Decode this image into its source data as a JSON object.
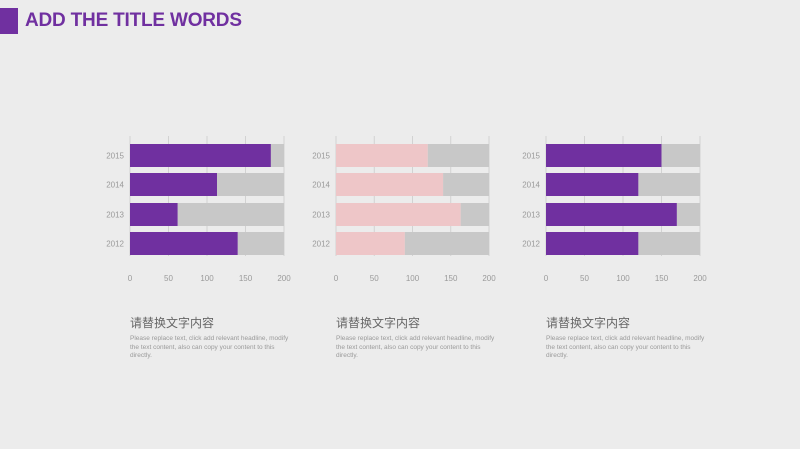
{
  "header": {
    "title": "ADD THE TITLE WORDS",
    "accent_color": "#7030a0"
  },
  "chart_data": [
    {
      "type": "bar",
      "orientation": "horizontal",
      "stacked": true,
      "categories": [
        "2015",
        "2014",
        "2013",
        "2012"
      ],
      "xlim": [
        0,
        200
      ],
      "xticks": [
        "0",
        "50",
        "100",
        "150",
        "200"
      ],
      "grid": true,
      "series": [
        {
          "color": "#7030a0",
          "values": [
            183,
            113,
            62,
            140
          ]
        },
        {
          "color": "#c8c8c8",
          "values": [
            17,
            87,
            138,
            60
          ]
        }
      ]
    },
    {
      "type": "bar",
      "orientation": "horizontal",
      "stacked": true,
      "categories": [
        "2015",
        "2014",
        "2013",
        "2012"
      ],
      "xlim": [
        0,
        200
      ],
      "xticks": [
        "0",
        "50",
        "100",
        "150",
        "200"
      ],
      "grid": true,
      "series": [
        {
          "color": "#eec6c8",
          "values": [
            120,
            140,
            163,
            90
          ]
        },
        {
          "color": "#c8c8c8",
          "values": [
            80,
            60,
            37,
            110
          ]
        }
      ]
    },
    {
      "type": "bar",
      "orientation": "horizontal",
      "stacked": true,
      "categories": [
        "2015",
        "2014",
        "2013",
        "2012"
      ],
      "xlim": [
        0,
        200
      ],
      "xticks": [
        "0",
        "50",
        "100",
        "150",
        "200"
      ],
      "grid": true,
      "series": [
        {
          "color": "#7030a0",
          "values": [
            150,
            120,
            170,
            120
          ]
        },
        {
          "color": "#c8c8c8",
          "values": [
            50,
            80,
            30,
            80
          ]
        }
      ]
    }
  ],
  "captions": [
    {
      "title": "请替换文字内容",
      "body": "Please replace text, click add relevant headline, modify the text content, also can copy your content to this directly."
    },
    {
      "title": "请替换文字内容",
      "body": "Please replace text, click add relevant headline, modify the text content, also can copy your content to this directly."
    },
    {
      "title": "请替换文字内容",
      "body": "Please replace text, click add relevant headline, modify the text content, also can copy your content to this directly."
    }
  ]
}
